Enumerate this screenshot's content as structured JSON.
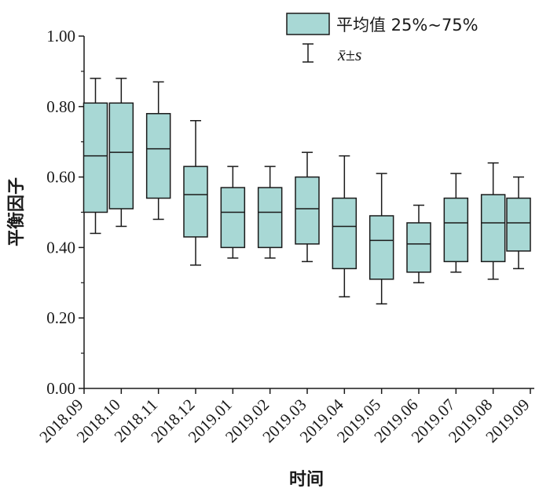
{
  "chart_data": {
    "type": "box",
    "ylabel": "平衡因子",
    "xlabel": "时间",
    "ylim": [
      0,
      1
    ],
    "yticks": [
      "0.00",
      "0.20",
      "0.40",
      "0.60",
      "0.80",
      "1.00"
    ],
    "categories": [
      "2018.09",
      "2018.10",
      "2018.11",
      "2018.12",
      "2019.01",
      "2019.02",
      "2019.03",
      "2019.04",
      "2019.05",
      "2019.06",
      "2019.07",
      "2019.08",
      "2019.09"
    ],
    "boxes": [
      {
        "q1": 0.5,
        "median": 0.66,
        "q3": 0.81,
        "low": 0.44,
        "high": 0.88
      },
      {
        "q1": 0.51,
        "median": 0.67,
        "q3": 0.81,
        "low": 0.46,
        "high": 0.88
      },
      {
        "q1": 0.54,
        "median": 0.68,
        "q3": 0.78,
        "low": 0.48,
        "high": 0.87
      },
      {
        "q1": 0.43,
        "median": 0.55,
        "q3": 0.63,
        "low": 0.35,
        "high": 0.76
      },
      {
        "q1": 0.4,
        "median": 0.5,
        "q3": 0.57,
        "low": 0.37,
        "high": 0.63
      },
      {
        "q1": 0.4,
        "median": 0.5,
        "q3": 0.57,
        "low": 0.37,
        "high": 0.63
      },
      {
        "q1": 0.41,
        "median": 0.51,
        "q3": 0.6,
        "low": 0.36,
        "high": 0.67
      },
      {
        "q1": 0.34,
        "median": 0.46,
        "q3": 0.54,
        "low": 0.26,
        "high": 0.66
      },
      {
        "q1": 0.31,
        "median": 0.42,
        "q3": 0.49,
        "low": 0.24,
        "high": 0.61
      },
      {
        "q1": 0.33,
        "median": 0.41,
        "q3": 0.47,
        "low": 0.3,
        "high": 0.52
      },
      {
        "q1": 0.36,
        "median": 0.47,
        "q3": 0.54,
        "low": 0.33,
        "high": 0.61
      },
      {
        "q1": 0.36,
        "median": 0.47,
        "q3": 0.55,
        "low": 0.31,
        "high": 0.64
      },
      {
        "q1": 0.39,
        "median": 0.47,
        "q3": 0.54,
        "low": 0.34,
        "high": 0.6
      }
    ],
    "legend": {
      "box_label": "平均值 25%~75%",
      "whisker_label": "x̄±s",
      "position": "top-right"
    },
    "colors": {
      "box_fill": "#a8d8d5",
      "stroke": "#1a1a1a"
    }
  }
}
